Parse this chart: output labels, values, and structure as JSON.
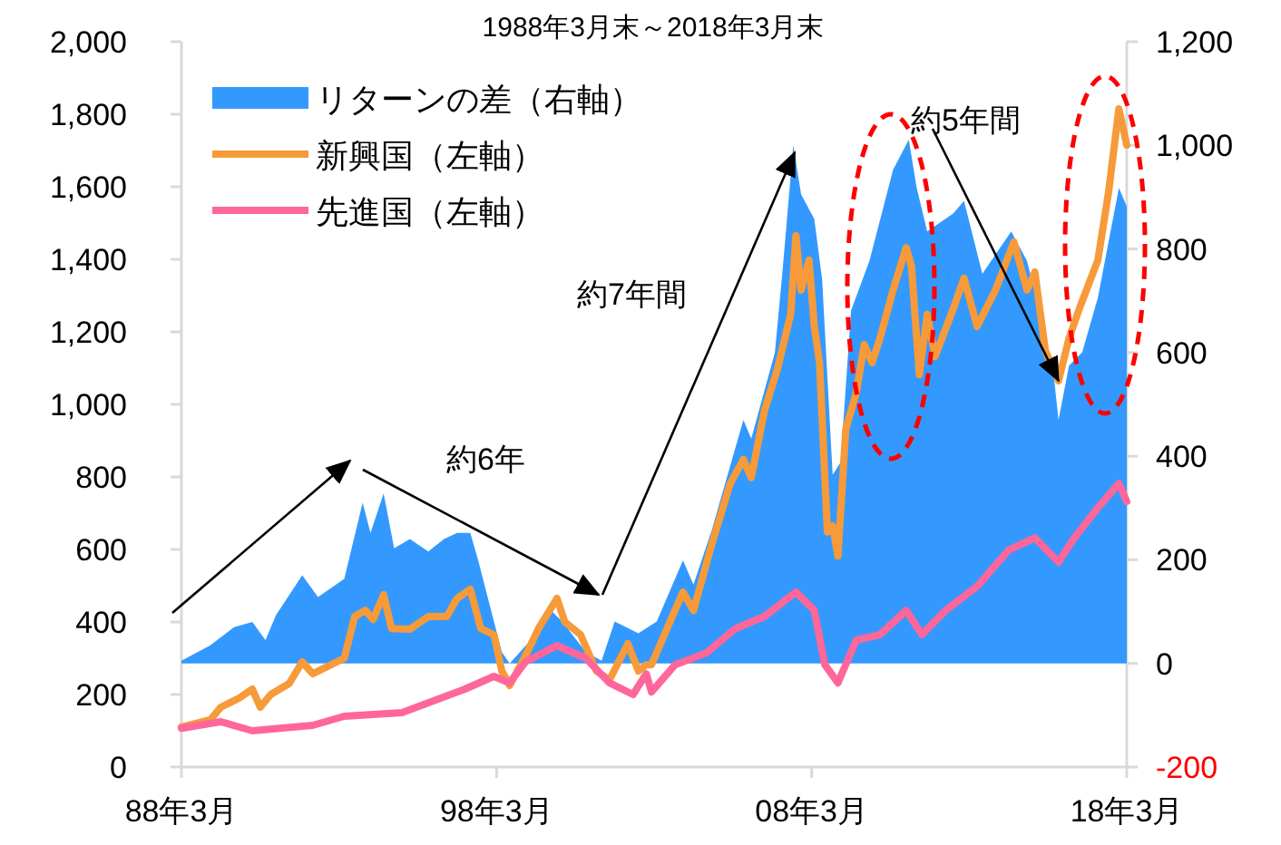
{
  "chart_data": {
    "type": "line",
    "title": "1988年3月末～2018年3月末",
    "annotations": [
      "約6年",
      "約7年間",
      {
        "text": "約5年間",
        "x": "2016-01",
        "y": 1065
      }
    ],
    "xlim": [
      "1988-03",
      "2018-03"
    ],
    "xticks": [
      {
        "value": "1988-03",
        "label": "88年3月"
      },
      {
        "value": "1998-03",
        "label": "98年3月"
      },
      {
        "value": "2008-03",
        "label": "08年3月"
      },
      {
        "value": "2018-03",
        "label": "18年3月"
      }
    ],
    "ylim": [
      0,
      2000
    ],
    "yticks": [
      0,
      {
        "value": 200,
        "label": "200"
      },
      {
        "value": 400,
        "label": "400"
      },
      {
        "value": 600,
        "label": "600"
      },
      {
        "value": 800,
        "label": "800"
      },
      {
        "value": 1000,
        "label": "1,000"
      },
      {
        "value": 1200,
        "label": "1,200"
      },
      {
        "value": 1400,
        "label": "1,400"
      },
      {
        "value": 1600,
        "label": "1,600"
      },
      {
        "value": 1800,
        "label": "1,800"
      },
      {
        "value": 2000,
        "label": "2,000"
      }
    ],
    "y2lim": [
      -200,
      1200
    ],
    "y2ticks": [
      {
        "value": -200,
        "label": "-200"
      },
      0,
      200,
      400,
      600,
      800,
      {
        "value": 1000,
        "label": "1,000"
      },
      {
        "value": 1200,
        "label": "1,200"
      }
    ],
    "legend": "top left",
    "grid": false,
    "line_style": "solid",
    "marker": "none",
    "series": [
      {
        "name": "リターンの差（右軸）",
        "type": "area",
        "axis": "y2",
        "color": "#3399ff",
        "x": [
          "1988-03",
          "1989-02",
          "1989-11",
          "1990-06",
          "1990-11",
          "1991-03",
          "1992-01",
          "1992-07",
          "1993-05",
          "1993-12",
          "1994-03",
          "1994-08",
          "1994-12",
          "1995-06",
          "1996-01",
          "1996-07",
          "1996-12",
          "1997-05",
          "1997-08",
          "1998-02",
          "1998-05",
          "1998-08",
          "1999-04",
          "1999-11",
          "2000-04",
          "2001-01",
          "2001-07",
          "2001-12",
          "2002-09",
          "2003-04",
          "2004-02",
          "2004-06",
          "2005-01",
          "2006-01",
          "2006-04",
          "2007-01",
          "2007-04",
          "2007-08",
          "2007-11",
          "2008-04",
          "2008-07",
          "2008-11",
          "2009-02",
          "2009-06",
          "2010-01",
          "2010-10",
          "2011-04",
          "2011-07",
          "2011-11",
          "2012-09",
          "2013-01",
          "2013-08",
          "2014-07",
          "2015-01",
          "2015-04",
          "2015-11",
          "2016-01",
          "2016-05",
          "2016-10",
          "2017-04",
          "2017-12",
          "2018-03"
        ],
        "values": [
          5,
          35,
          70,
          80,
          45,
          93,
          170,
          128,
          163,
          310,
          252,
          328,
          222,
          240,
          216,
          240,
          252,
          252,
          199,
          81,
          22,
          0,
          45,
          106,
          81,
          22,
          5,
          81,
          58,
          81,
          199,
          152,
          258,
          470,
          434,
          600,
          763,
          1000,
          905,
          858,
          740,
          364,
          388,
          681,
          777,
          953,
          1011,
          918,
          834,
          869,
          893,
          752,
          834,
          777,
          717,
          565,
          470,
          575,
          600,
          706,
          918,
          882
        ]
      },
      {
        "name": "新興国（左軸）",
        "axis": "y",
        "color": "#f79a3a",
        "x": [
          "1988-03",
          "1989-02",
          "1989-06",
          "1990-01",
          "1990-06",
          "1990-09",
          "1991-01",
          "1991-08",
          "1992-01",
          "1992-05",
          "1993-05",
          "1993-09",
          "1994-01",
          "1994-04",
          "1994-08",
          "1994-11",
          "1995-06",
          "1996-01",
          "1996-08",
          "1996-12",
          "1997-05",
          "1997-09",
          "1998-02",
          "1998-05",
          "1998-08",
          "1999-02",
          "1999-07",
          "2000-02",
          "2000-05",
          "2000-11",
          "2001-05",
          "2001-10",
          "2002-05",
          "2002-09",
          "2002-12",
          "2003-02",
          "2003-09",
          "2004-02",
          "2004-06",
          "2005-01",
          "2005-08",
          "2006-01",
          "2006-04",
          "2006-09",
          "2007-02",
          "2007-07",
          "2007-09",
          "2007-11",
          "2008-02",
          "2008-04",
          "2008-06",
          "2008-09",
          "2008-11",
          "2009-01",
          "2009-04",
          "2009-08",
          "2009-11",
          "2010-02",
          "2010-05",
          "2010-10",
          "2011-03",
          "2011-05",
          "2011-08",
          "2011-11",
          "2012-02",
          "2012-09",
          "2013-01",
          "2013-06",
          "2014-01",
          "2014-08",
          "2015-01",
          "2015-04",
          "2015-08",
          "2016-01",
          "2016-05",
          "2016-09",
          "2017-04",
          "2017-08",
          "2017-12",
          "2018-03"
        ],
        "values": [
          110,
          130,
          165,
          190,
          215,
          165,
          200,
          230,
          290,
          257,
          300,
          415,
          432,
          407,
          475,
          382,
          380,
          415,
          415,
          465,
          490,
          382,
          365,
          265,
          225,
          307,
          382,
          465,
          400,
          365,
          265,
          240,
          340,
          265,
          282,
          282,
          400,
          482,
          432,
          615,
          782,
          848,
          798,
          982,
          1098,
          1248,
          1465,
          1315,
          1398,
          1215,
          1115,
          648,
          665,
          582,
          932,
          1032,
          1165,
          1115,
          1182,
          1315,
          1432,
          1382,
          1082,
          1248,
          1132,
          1265,
          1348,
          1215,
          1315,
          1448,
          1315,
          1365,
          1148,
          1065,
          1182,
          1265,
          1398,
          1582,
          1815,
          1715
        ]
      },
      {
        "name": "先進国（左軸）",
        "axis": "y",
        "color": "#ff6699",
        "x": [
          "1988-03",
          "1989-06",
          "1990-06",
          "1992-05",
          "1993-05",
          "1995-03",
          "1997-03",
          "1998-02",
          "1998-08",
          "1999-02",
          "2000-02",
          "2000-05",
          "2001-01",
          "2001-10",
          "2002-07",
          "2002-12",
          "2003-02",
          "2003-11",
          "2004-11",
          "2005-10",
          "2006-09",
          "2007-09",
          "2008-04",
          "2008-08",
          "2009-01",
          "2009-08",
          "2010-05",
          "2011-03",
          "2011-09",
          "2012-06",
          "2013-06",
          "2014-06",
          "2015-04",
          "2016-01",
          "2016-07",
          "2017-04",
          "2017-12",
          "2018-03"
        ],
        "values": [
          107,
          125,
          100,
          115,
          140,
          150,
          215,
          250,
          232,
          290,
          335,
          325,
          300,
          232,
          200,
          257,
          207,
          282,
          315,
          382,
          415,
          482,
          432,
          282,
          232,
          350,
          365,
          432,
          365,
          432,
          498,
          598,
          632,
          565,
          632,
          715,
          782,
          732
        ]
      }
    ]
  }
}
